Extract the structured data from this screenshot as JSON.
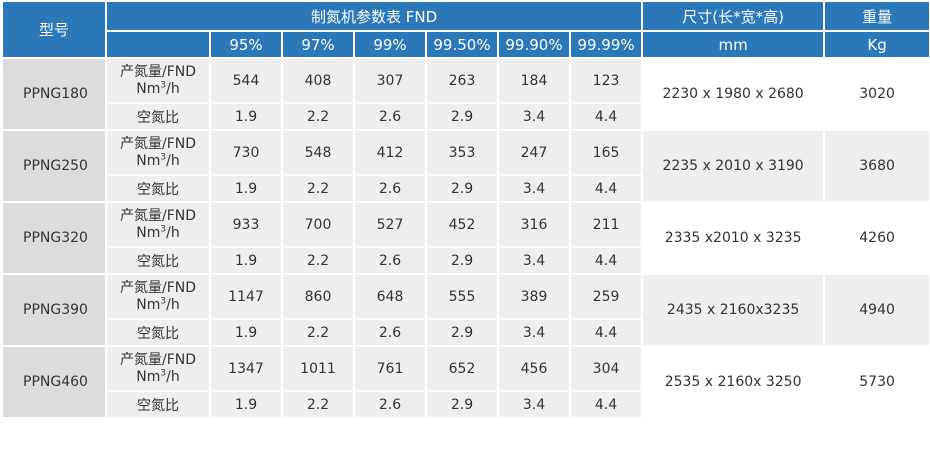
{
  "headers": {
    "model": "型号",
    "params_title": "制氮机参数表 FND",
    "size": "尺寸(长*宽*高)",
    "weight": "重量",
    "purities": [
      "95%",
      "97%",
      "99%",
      "99.50%",
      "99.90%",
      "99.99%"
    ],
    "size_unit": "mm",
    "weight_unit": "Kg"
  },
  "row_labels": {
    "flow_line1": "产氮量/FND",
    "flow_unit_base": "Nm",
    "flow_unit_exp": "3",
    "flow_unit_tail": "/h",
    "ratio": "空氮比"
  },
  "rows": [
    {
      "model": "PPNG180",
      "flow": [
        "544",
        "408",
        "307",
        "263",
        "184",
        "123"
      ],
      "ratio": [
        "1.9",
        "2.2",
        "2.6",
        "2.9",
        "3.4",
        "4.4"
      ],
      "size": "2230 x 1980 x 2680",
      "weight": "3020"
    },
    {
      "model": "PPNG250",
      "flow": [
        "730",
        "548",
        "412",
        "353",
        "247",
        "165"
      ],
      "ratio": [
        "1.9",
        "2.2",
        "2.6",
        "2.9",
        "3.4",
        "4.4"
      ],
      "size": "2235 x 2010 x 3190",
      "weight": "3680"
    },
    {
      "model": "PPNG320",
      "flow": [
        "933",
        "700",
        "527",
        "452",
        "316",
        "211"
      ],
      "ratio": [
        "1.9",
        "2.2",
        "2.6",
        "2.9",
        "3.4",
        "4.4"
      ],
      "size": "2335 x2010 x 3235",
      "weight": "4260"
    },
    {
      "model": "PPNG390",
      "flow": [
        "1147",
        "860",
        "648",
        "555",
        "389",
        "259"
      ],
      "ratio": [
        "1.9",
        "2.2",
        "2.6",
        "2.9",
        "3.4",
        "4.4"
      ],
      "size": "2435 x 2160x3235",
      "weight": "4940"
    },
    {
      "model": "PPNG460",
      "flow": [
        "1347",
        "1011",
        "761",
        "652",
        "456",
        "304"
      ],
      "ratio": [
        "1.9",
        "2.2",
        "2.6",
        "2.9",
        "3.4",
        "4.4"
      ],
      "size": "2535 x 2160x 3250",
      "weight": "5730"
    }
  ],
  "colors": {
    "header_bg": "#2b78b8",
    "header_text": "#ffffff",
    "model_bg": "#dcdcdc",
    "shade_bg": "#eeeeee",
    "text": "#333333"
  }
}
